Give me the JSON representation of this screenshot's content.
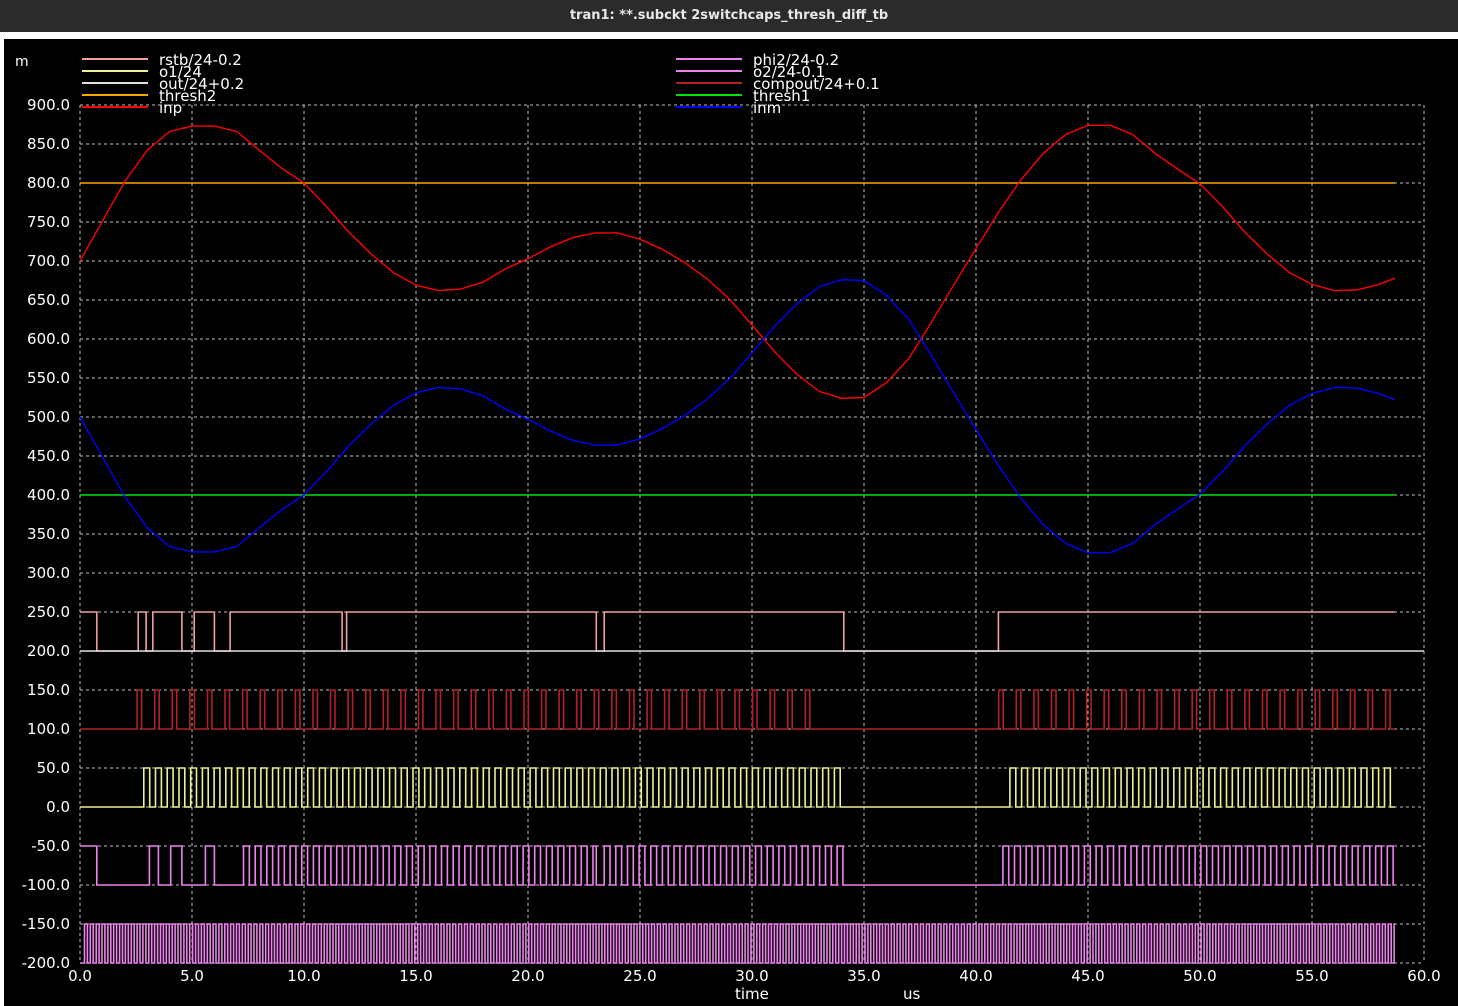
{
  "window": {
    "title": "tran1: **.subckt 2switchcaps_thresh_diff_tb"
  },
  "colors": {
    "background": "#000000",
    "grid": "#bfbfbf",
    "text": "#ffffff",
    "titlebar": "#2b2b2b"
  },
  "chart_data": {
    "type": "line",
    "y_unit_prefix": "m",
    "xlabel": "time",
    "x_unit": "us",
    "xlim": [
      0,
      60
    ],
    "ylim": [
      -200,
      900
    ],
    "x_ticks": [
      "0.0",
      "5.0",
      "10.0",
      "15.0",
      "20.0",
      "25.0",
      "30.0",
      "35.0",
      "40.0",
      "45.0",
      "50.0",
      "55.0",
      "60.0"
    ],
    "y_ticks": [
      "900.0",
      "850.0",
      "800.0",
      "750.0",
      "700.0",
      "650.0",
      "600.0",
      "550.0",
      "500.0",
      "450.0",
      "400.0",
      "350.0",
      "300.0",
      "250.0",
      "200.0",
      "150.0",
      "100.0",
      "50.0",
      "0.0",
      "-50.0",
      "-100.0",
      "-150.0",
      "-200.0"
    ],
    "grid": true,
    "legend": "top",
    "series": [
      {
        "name": "rstb/24-0.2",
        "color": "#f0a0a0",
        "kind": "digital",
        "high": 250,
        "low": 200,
        "highs": [
          [
            0,
            0.75
          ],
          [
            2.6,
            2.95
          ],
          [
            3.25,
            4.55
          ],
          [
            5.1,
            6.0
          ],
          [
            6.7,
            11.7
          ],
          [
            11.9,
            23.05
          ],
          [
            23.4,
            34.1
          ],
          [
            41.0,
            58.7
          ]
        ]
      },
      {
        "name": "o1/24",
        "color": "#f0f090",
        "kind": "digital",
        "high": 50,
        "low": 0,
        "start": 2.85,
        "period": 0.5225,
        "duty": 0.5,
        "gaps": [
          [
            33.9,
            41.0
          ]
        ],
        "end": 58.7
      },
      {
        "name": "out/24+0.2",
        "color": "#e0e0e0",
        "kind": "constant",
        "value": 200
      },
      {
        "name": "thresh2",
        "color": "#ffa500",
        "kind": "constant",
        "value": 800
      },
      {
        "name": "inp",
        "color": "#ff0000",
        "kind": "analog",
        "x": [
          0,
          1,
          2,
          3,
          4,
          5,
          6,
          7,
          8,
          9,
          10,
          11,
          12,
          13,
          14,
          15,
          16,
          17,
          18,
          19,
          20,
          21,
          22,
          23,
          24,
          25,
          26,
          27,
          28,
          29,
          30,
          31,
          32,
          33,
          34,
          35,
          36,
          37,
          38,
          39,
          40,
          41,
          42,
          43,
          44,
          45,
          46,
          47,
          48,
          49,
          50,
          51,
          52,
          53,
          54,
          55,
          56,
          57,
          58,
          58.7
        ],
        "y": [
          700,
          751,
          802,
          842,
          866,
          873,
          873,
          866,
          842,
          819,
          800,
          770,
          737,
          709,
          685,
          669,
          662,
          664,
          673,
          690,
          703,
          718,
          730,
          736,
          736,
          728,
          715,
          698,
          677,
          651,
          618,
          584,
          555,
          533,
          524,
          525,
          544,
          575,
          621,
          669,
          716,
          762,
          804,
          838,
          862,
          874,
          874,
          862,
          838,
          818,
          799,
          770,
          737,
          709,
          685,
          670,
          662,
          663,
          670,
          678
        ]
      },
      {
        "name": "phi2/24-0.2",
        "color": "#ee82ee",
        "kind": "digital",
        "high": -150,
        "low": -200,
        "start": 0.2,
        "period": 0.261,
        "duty": 0.5,
        "end": 58.7
      },
      {
        "name": "o2/24-0.1",
        "color": "#ee82ee",
        "kind": "digital",
        "high": -50,
        "low": -100,
        "highs": [
          [
            0,
            0.75
          ],
          [
            3.1,
            3.5
          ],
          [
            4.05,
            4.55
          ],
          [
            5.6,
            6.0
          ],
          [
            7.3,
            23.05
          ],
          [
            23.4,
            34.1
          ],
          [
            41.2,
            58.7
          ]
        ],
        "pulse_period": 0.52,
        "duty": 0.5
      },
      {
        "name": "compout/24+0.1",
        "color": "#b22222",
        "kind": "digital",
        "high": 150,
        "low": 100,
        "start": 2.55,
        "period": 0.785,
        "pulse_width": 0.2,
        "gaps": [
          [
            33.0,
            40.8
          ]
        ],
        "end": 58.7
      },
      {
        "name": "thresh1",
        "color": "#00e000",
        "kind": "constant",
        "value": 400
      },
      {
        "name": "inm",
        "color": "#0000ff",
        "kind": "analog",
        "x": [
          0,
          1,
          2,
          3,
          4,
          5,
          6,
          7,
          8,
          9,
          10,
          11,
          12,
          13,
          14,
          15,
          16,
          17,
          18,
          19,
          20,
          21,
          22,
          23,
          24,
          25,
          26,
          27,
          28,
          29,
          30,
          31,
          32,
          33,
          34,
          35,
          36,
          37,
          38,
          39,
          40,
          41,
          42,
          43,
          44,
          45,
          46,
          47,
          48,
          49,
          50,
          51,
          52,
          53,
          54,
          55,
          56,
          57,
          58,
          58.7
        ],
        "y": [
          500,
          449,
          398,
          358,
          334,
          327,
          327,
          334,
          358,
          381,
          400,
          430,
          463,
          491,
          515,
          531,
          538,
          536,
          527,
          510,
          497,
          482,
          470,
          464,
          464,
          472,
          485,
          502,
          523,
          549,
          582,
          616,
          645,
          667,
          676,
          675,
          656,
          625,
          579,
          531,
          484,
          438,
          396,
          362,
          338,
          326,
          326,
          338,
          362,
          382,
          401,
          430,
          463,
          491,
          515,
          530,
          538,
          537,
          530,
          522
        ]
      }
    ]
  }
}
